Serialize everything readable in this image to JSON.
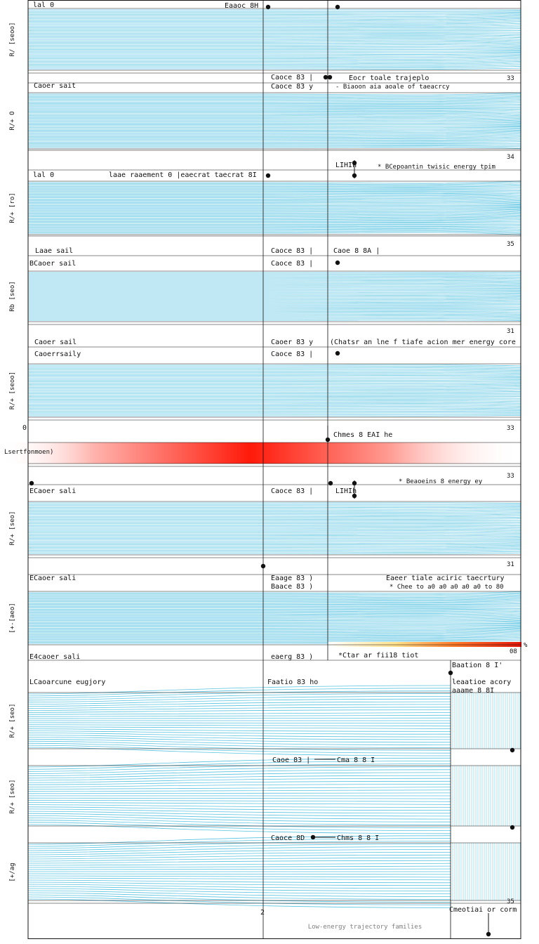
{
  "chart_data": {
    "type": "line",
    "title": "Low-energy trajectory families",
    "layout": "stacked-panels",
    "accent_colors": {
      "trajectory": "#3bb8dc",
      "grid": "#111111",
      "heat": "#ff1a0a",
      "heat_warm": "#ffd23c"
    },
    "x_ticks": [
      "2"
    ],
    "bottom_axis_label": "2",
    "panels": [
      {
        "ylabel": "R/ [seoo]",
        "left_label": "lal 0",
        "case_label": "Eaaoc 8H",
        "style": "dense"
      },
      {
        "ylabel": "R/+ O",
        "left_label": "Caoer sait",
        "case_label": "Caoce 83 |",
        "case_label2": "Caoce 83 y",
        "note": "Eocr toale trajeplo",
        "note2": "- Biaoon aia aoale of taeacrcy",
        "style": "dense"
      },
      {
        "ylabel": "R/+ [ro]",
        "left_label": "lal 0",
        "case_label": "laae raaement 0 |eaecrat taecrat 8I",
        "note": "LIHIh",
        "note2": "* BCepoantin twisic energy tpim",
        "style": "dense"
      },
      {
        "ylabel": "Rb [seo]",
        "left_label": "Laae sail",
        "left_label2": "BCaoer sail",
        "case_label": "Caoce 83 |",
        "case_label2": "Caoce 83 |",
        "note": "Caoe 8 8A |",
        "style": "lines"
      },
      {
        "ylabel": "R/+ [seoo]",
        "left_label": "Caoer sail",
        "left_label2": "Caoerrsaily",
        "case_label": "Caoer 83 y",
        "case_label2": "Caoce 83 |",
        "note": "(Chatsr an lne f tiafe acion mer energy core",
        "style": "lines"
      },
      {
        "ylabel": "Lsertfonmoen)",
        "left_label": "0",
        "note": "Chmes 8 EAI he",
        "style": "heat"
      },
      {
        "ylabel": "R/+ [seo]",
        "left_label": "ECaoer sali",
        "case_label": "Caoce 83 |",
        "note": "LIHIh",
        "note2": "* Beaoeins 8 energy ey",
        "style": "lines"
      },
      {
        "ylabel": "[+-[aeo]",
        "left_label": "ECaoer sali",
        "case_label": "Eaage 83 )",
        "case_label2": "Baace 83 )",
        "note": "Eaeer tiale aciric taecrtury",
        "note2": "* Chee to a0 a0 a0 a0 a0 to 80",
        "style": "dense"
      },
      {
        "ylabel": "R/+ [seo]",
        "left_label": "E4caoer sali",
        "left_label2": "LCaoarcune eugjory",
        "case_label": "eaerg 83 )",
        "case_label2": "Faatio 83 ho",
        "note": "*Ctar ar fii18 tiot",
        "note_right": "Baation 8 I'",
        "note_right2": "leaatioe acory",
        "note_right3": "aaame 8 8I",
        "style": "fan"
      },
      {
        "ylabel": "R/+ [seo]",
        "case_label": "Caoe 83 |",
        "note": "Cma 8 8 I",
        "style": "fan"
      },
      {
        "ylabel": "[+/ag",
        "case_label": "Caoce 8D",
        "note": "Chms 8 8 I",
        "style": "fan"
      }
    ],
    "footer_note": "Cmeotiai or corm",
    "corner_ticks": [
      "33",
      "34",
      "35",
      "31",
      "33",
      "33",
      "31",
      "35"
    ],
    "heat_scale": {
      "max_label": "08",
      "corner_label": "%"
    }
  }
}
